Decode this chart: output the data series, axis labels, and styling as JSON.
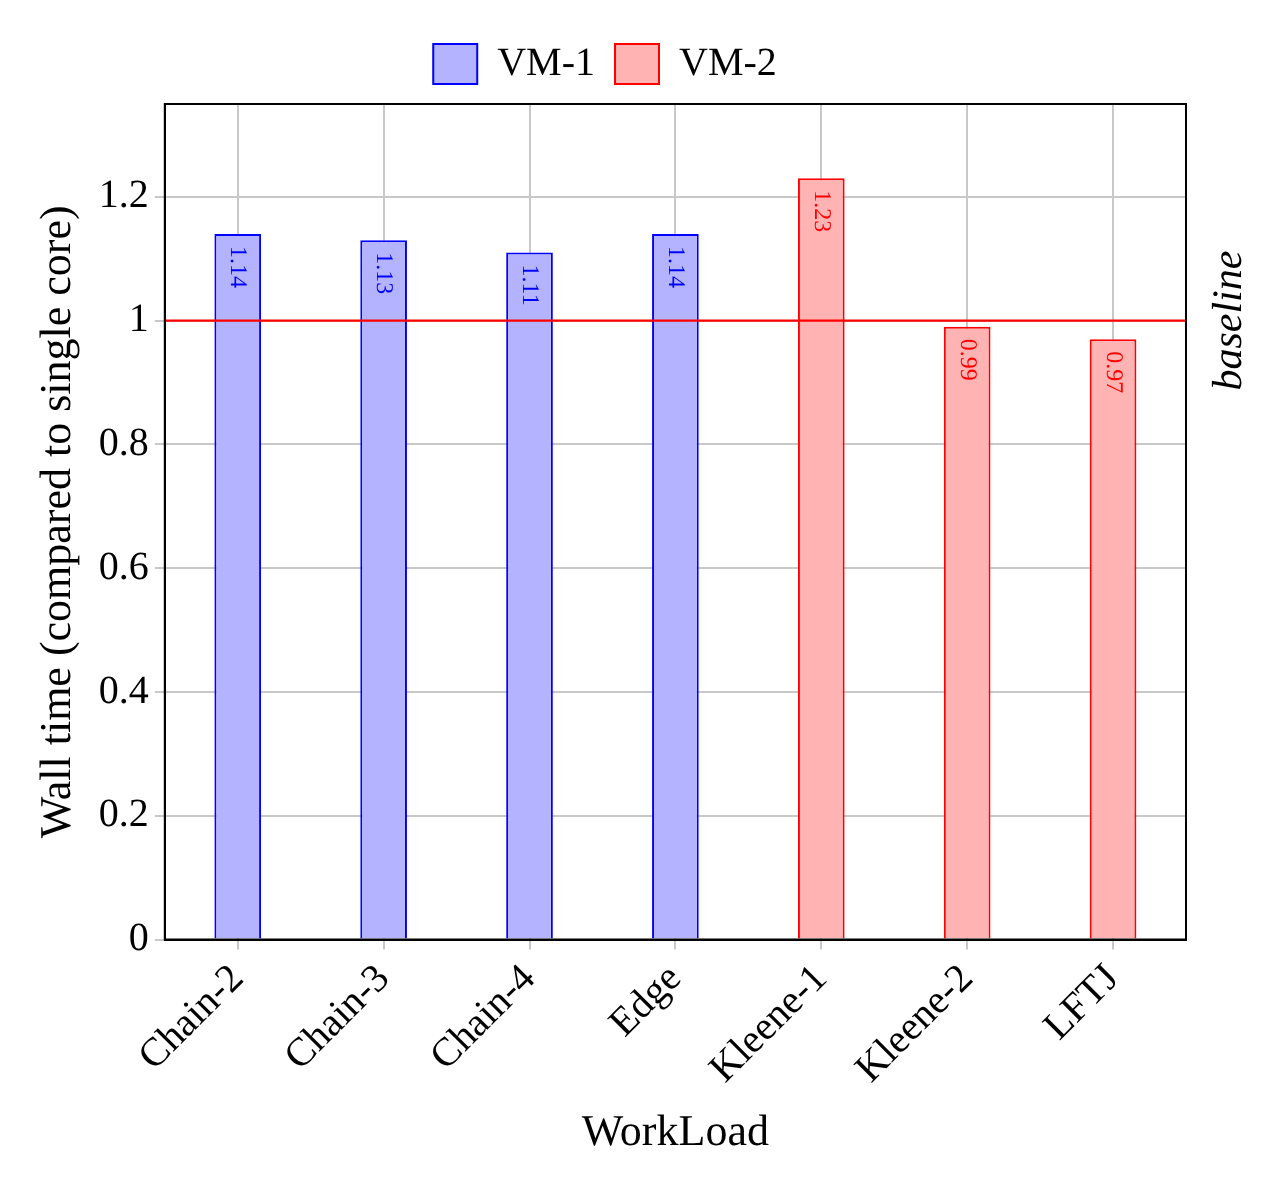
{
  "chart_data": {
    "type": "bar",
    "xlabel": "WorkLoad",
    "ylabel": "Wall time (compared to single core)",
    "categories": [
      "Chain-2",
      "Chain-3",
      "Chain-4",
      "Edge",
      "Kleene-1",
      "Kleene-2",
      "LFTJ"
    ],
    "series": [
      {
        "name": "VM-1",
        "color": "#b3b3ff",
        "values": [
          1.14,
          1.13,
          1.11,
          1.14,
          null,
          null,
          null
        ]
      },
      {
        "name": "VM-2",
        "color": "#ffb3b3",
        "values": [
          null,
          null,
          null,
          null,
          1.23,
          0.99,
          0.97
        ]
      }
    ],
    "ylim": [
      0,
      1.35
    ],
    "yticks": [
      0,
      0.2,
      0.4,
      0.6,
      0.8,
      1,
      1.2
    ],
    "grid": true,
    "legend": "top",
    "data_labels": true,
    "ref_lines": [
      {
        "axis": "y",
        "value": 1,
        "label": "baseline",
        "color": "#ff0000"
      }
    ]
  }
}
